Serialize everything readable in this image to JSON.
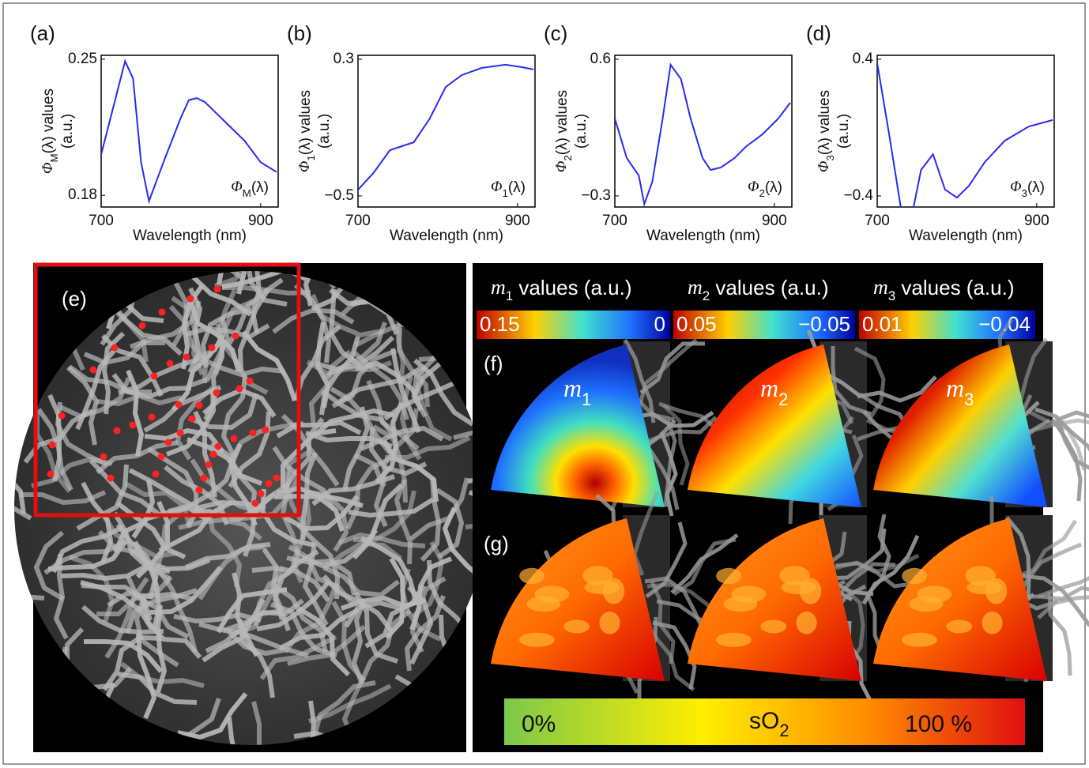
{
  "chart_data": [
    {
      "type": "line",
      "panel_label": "(a)",
      "ylabel": [
        "Φ",
        "M",
        "(λ) values"
      ],
      "ylabel_unit": "(a.u.)",
      "xlabel": "Wavelength (nm)",
      "curve_label": [
        "Φ",
        "M",
        "(λ)"
      ],
      "x": [
        700,
        730,
        740,
        750,
        760,
        780,
        800,
        810,
        820,
        830,
        850,
        860,
        880,
        900,
        920
      ],
      "series": [
        {
          "color": "#2a2af2",
          "values": [
            0.201,
            0.249,
            0.24,
            0.197,
            0.177,
            0.199,
            0.22,
            0.229,
            0.23,
            0.228,
            0.22,
            0.216,
            0.208,
            0.197,
            0.192
          ]
        }
      ],
      "xlim": [
        700,
        922
      ],
      "ylim": [
        0.174,
        0.252
      ],
      "xticks": [
        700,
        900
      ],
      "yticks": [
        0.18,
        0.25
      ]
    },
    {
      "type": "line",
      "panel_label": "(b)",
      "ylabel": [
        "Φ",
        "1",
        "(λ) values"
      ],
      "ylabel_unit": "(a.u.)",
      "xlabel": "Wavelength (nm)",
      "curve_label": [
        "Φ",
        "1",
        "(λ)"
      ],
      "x": [
        700,
        720,
        740,
        755,
        770,
        790,
        810,
        830,
        855,
        885,
        905,
        920
      ],
      "series": [
        {
          "color": "#2a2af2",
          "values": [
            -0.464,
            -0.362,
            -0.232,
            -0.209,
            -0.186,
            -0.047,
            0.138,
            0.207,
            0.249,
            0.268,
            0.254,
            0.24
          ]
        }
      ],
      "xlim": [
        700,
        922
      ],
      "ylim": [
        -0.565,
        0.323
      ],
      "xticks": [
        700,
        900
      ],
      "yticks": [
        {
          "value": -0.5,
          "label": "−0.5"
        },
        0.3
      ]
    },
    {
      "type": "line",
      "panel_label": "(c)",
      "ylabel": [
        "Φ",
        "2",
        "(λ) values"
      ],
      "ylabel_unit": "(a.u.)",
      "xlabel": "Wavelength (nm)",
      "curve_label": [
        "Φ",
        "2",
        "(λ)"
      ],
      "x": [
        700,
        715,
        730,
        737,
        747,
        760,
        770,
        783,
        795,
        810,
        820,
        833,
        850,
        865,
        885,
        905,
        920
      ],
      "series": [
        {
          "color": "#2a2af2",
          "values": [
            0.209,
            -0.051,
            -0.166,
            -0.353,
            -0.207,
            0.209,
            0.564,
            0.47,
            0.209,
            -0.051,
            -0.129,
            -0.113,
            -0.051,
            0.027,
            0.105,
            0.209,
            0.314
          ]
        }
      ],
      "xlim": [
        700,
        922
      ],
      "ylim": [
        -0.373,
        0.626
      ],
      "xticks": [
        700,
        900
      ],
      "yticks": [
        {
          "value": -0.3,
          "label": "−0.3"
        },
        0.6
      ]
    },
    {
      "type": "line",
      "panel_label": "(d)",
      "ylabel": [
        "Φ",
        "3",
        "(λ) values"
      ],
      "ylabel_unit": "(a.u.)",
      "xlabel": "Wavelength (nm)",
      "curve_label": [
        "Φ",
        "3",
        "(λ)"
      ],
      "x": [
        700,
        715,
        730,
        745,
        755,
        770,
        785,
        800,
        815,
        835,
        860,
        890,
        920
      ],
      "series": [
        {
          "color": "#2a2af2",
          "values": [
            0.377,
            -0.039,
            -0.48,
            -0.48,
            -0.248,
            -0.156,
            -0.363,
            -0.41,
            -0.341,
            -0.202,
            -0.077,
            0.006,
            0.044
          ]
        }
      ],
      "xlim": [
        700,
        922
      ],
      "ylim": [
        -0.465,
        0.423
      ],
      "xticks": [
        700,
        900
      ],
      "yticks": [
        {
          "value": -0.4,
          "label": "−0.4"
        },
        0.4
      ]
    }
  ],
  "panels": {
    "e": {
      "label": "(e)"
    },
    "colorbars": [
      {
        "symbol": "m",
        "sub": "1",
        "rest": " values (a.u.)",
        "max": "0.15",
        "min": "0"
      },
      {
        "symbol": "m",
        "sub": "2",
        "rest": " values (a.u.)",
        "max": "0.05",
        "min": "−0.05"
      },
      {
        "symbol": "m",
        "sub": "3",
        "rest": " values (a.u.)",
        "max": "0.01",
        "min": "−0.04"
      }
    ],
    "f": {
      "label": "(f)",
      "maps": [
        [
          "m",
          "1"
        ],
        [
          "m",
          "2"
        ],
        [
          "m",
          "3"
        ]
      ]
    },
    "g": {
      "label": "(g)"
    },
    "so2_bar": {
      "min": "0%",
      "symbol": "sO",
      "sub": "2",
      "max": "100 %"
    }
  }
}
